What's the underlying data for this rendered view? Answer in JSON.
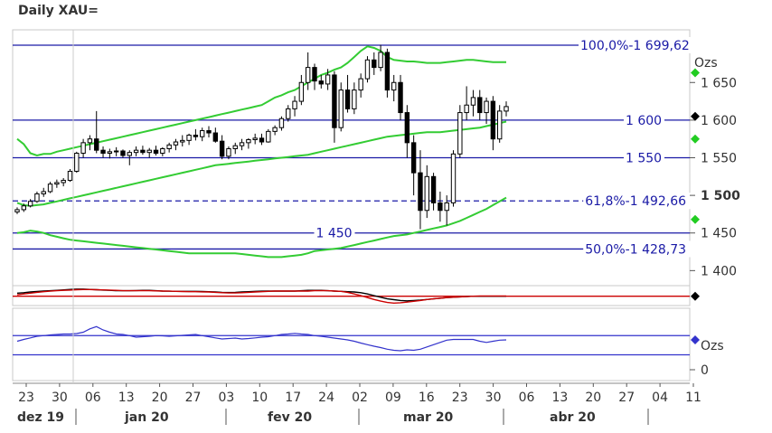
{
  "title": "Daily XAU=",
  "chart_data": {
    "type": "candlestick",
    "title": "Daily XAU=",
    "y_unit_label": "Ozs",
    "ylim": [
      1380,
      1720
    ],
    "y_ticks": [
      {
        "value": 1650,
        "label": "1 650",
        "bold": false
      },
      {
        "value": 1600,
        "label": "1 600",
        "bold": false
      },
      {
        "value": 1550,
        "label": "1 550",
        "bold": false
      },
      {
        "value": 1500,
        "label": "1 500",
        "bold": true
      },
      {
        "value": 1450,
        "label": "1 450",
        "bold": false
      },
      {
        "value": 1400,
        "label": "1 400",
        "bold": false
      }
    ],
    "x_ticks": [
      "23",
      "30",
      "06",
      "13",
      "20",
      "27",
      "03",
      "10",
      "17",
      "24",
      "02",
      "09",
      "16",
      "23",
      "30",
      "06",
      "13",
      "20",
      "27",
      "04",
      "11"
    ],
    "month_labels": [
      "dez 19",
      "jan 20",
      "fev 20",
      "mar 20",
      "abr 20"
    ],
    "horizontal_levels": [
      {
        "value": 1699.62,
        "label": "100,0%-1 699,62",
        "style": "solid"
      },
      {
        "value": 1600,
        "label": "1 600",
        "style": "solid"
      },
      {
        "value": 1550,
        "label": "1 550",
        "style": "solid"
      },
      {
        "value": 1492.66,
        "label": "61,8%-1 492,66",
        "style": "dashed"
      },
      {
        "value": 1450,
        "label": "1 450",
        "style": "solid"
      },
      {
        "value": 1428.73,
        "label": "50,0%-1 428,73",
        "style": "solid"
      }
    ],
    "candles": [
      [
        1478,
        1484,
        1475,
        1481
      ],
      [
        1481,
        1489,
        1478,
        1486
      ],
      [
        1486,
        1495,
        1484,
        1492
      ],
      [
        1492,
        1505,
        1490,
        1502
      ],
      [
        1502,
        1510,
        1498,
        1505
      ],
      [
        1505,
        1518,
        1503,
        1515
      ],
      [
        1515,
        1521,
        1510,
        1517
      ],
      [
        1517,
        1523,
        1512,
        1520
      ],
      [
        1520,
        1535,
        1518,
        1532
      ],
      [
        1532,
        1558,
        1530,
        1556
      ],
      [
        1556,
        1575,
        1550,
        1570
      ],
      [
        1570,
        1580,
        1560,
        1575
      ],
      [
        1575,
        1612,
        1556,
        1560
      ],
      [
        1560,
        1565,
        1550,
        1556
      ],
      [
        1556,
        1562,
        1549,
        1558
      ],
      [
        1558,
        1564,
        1552,
        1559
      ],
      [
        1559,
        1561,
        1550,
        1553
      ],
      [
        1553,
        1560,
        1540,
        1557
      ],
      [
        1557,
        1565,
        1552,
        1560
      ],
      [
        1560,
        1566,
        1554,
        1557
      ],
      [
        1557,
        1563,
        1550,
        1560
      ],
      [
        1560,
        1566,
        1553,
        1556
      ],
      [
        1556,
        1564,
        1552,
        1562
      ],
      [
        1562,
        1570,
        1557,
        1567
      ],
      [
        1567,
        1575,
        1560,
        1571
      ],
      [
        1571,
        1580,
        1565,
        1573
      ],
      [
        1573,
        1582,
        1567,
        1580
      ],
      [
        1580,
        1588,
        1573,
        1578
      ],
      [
        1578,
        1590,
        1572,
        1586
      ],
      [
        1586,
        1592,
        1577,
        1583
      ],
      [
        1583,
        1590,
        1570,
        1572
      ],
      [
        1572,
        1580,
        1548,
        1552
      ],
      [
        1552,
        1565,
        1548,
        1562
      ],
      [
        1562,
        1570,
        1555,
        1566
      ],
      [
        1566,
        1575,
        1560,
        1570
      ],
      [
        1570,
        1576,
        1562,
        1574
      ],
      [
        1574,
        1582,
        1568,
        1576
      ],
      [
        1576,
        1582,
        1567,
        1571
      ],
      [
        1571,
        1588,
        1570,
        1585
      ],
      [
        1585,
        1593,
        1580,
        1590
      ],
      [
        1590,
        1605,
        1586,
        1602
      ],
      [
        1602,
        1620,
        1598,
        1615
      ],
      [
        1615,
        1632,
        1605,
        1625
      ],
      [
        1625,
        1660,
        1620,
        1650
      ],
      [
        1650,
        1690,
        1640,
        1670
      ],
      [
        1670,
        1675,
        1640,
        1652
      ],
      [
        1652,
        1660,
        1642,
        1648
      ],
      [
        1648,
        1668,
        1640,
        1660
      ],
      [
        1660,
        1665,
        1570,
        1590
      ],
      [
        1590,
        1650,
        1585,
        1640
      ],
      [
        1640,
        1660,
        1610,
        1615
      ],
      [
        1615,
        1650,
        1608,
        1640
      ],
      [
        1640,
        1662,
        1630,
        1655
      ],
      [
        1655,
        1685,
        1650,
        1680
      ],
      [
        1680,
        1690,
        1660,
        1670
      ],
      [
        1670,
        1700,
        1665,
        1690
      ],
      [
        1690,
        1695,
        1630,
        1640
      ],
      [
        1640,
        1660,
        1625,
        1650
      ],
      [
        1650,
        1660,
        1600,
        1610
      ],
      [
        1610,
        1620,
        1550,
        1570
      ],
      [
        1570,
        1580,
        1500,
        1530
      ],
      [
        1530,
        1560,
        1455,
        1480
      ],
      [
        1480,
        1540,
        1470,
        1525
      ],
      [
        1525,
        1530,
        1480,
        1490
      ],
      [
        1490,
        1505,
        1465,
        1480
      ],
      [
        1480,
        1500,
        1460,
        1490
      ],
      [
        1490,
        1560,
        1485,
        1555
      ],
      [
        1555,
        1620,
        1550,
        1610
      ],
      [
        1610,
        1645,
        1600,
        1620
      ],
      [
        1620,
        1640,
        1605,
        1630
      ],
      [
        1630,
        1640,
        1600,
        1610
      ],
      [
        1610,
        1630,
        1595,
        1625
      ],
      [
        1625,
        1632,
        1560,
        1575
      ],
      [
        1575,
        1620,
        1570,
        1612
      ],
      [
        1612,
        1625,
        1605,
        1618
      ]
    ],
    "upper_band": [
      1575,
      1568,
      1556,
      1553,
      1555,
      1555,
      1558,
      1560,
      1562,
      1564,
      1566,
      1568,
      1570,
      1572,
      1574,
      1576,
      1578,
      1580,
      1582,
      1584,
      1586,
      1588,
      1590,
      1592,
      1594,
      1596,
      1598,
      1600,
      1602,
      1604,
      1606,
      1608,
      1610,
      1612,
      1614,
      1616,
      1618,
      1620,
      1625,
      1630,
      1633,
      1637,
      1640,
      1645,
      1650,
      1655,
      1660,
      1663,
      1667,
      1670,
      1676,
      1684,
      1692,
      1698,
      1696,
      1692,
      1684,
      1680,
      1679,
      1678,
      1678,
      1677,
      1676,
      1676,
      1676,
      1677,
      1678,
      1679,
      1680,
      1680,
      1679,
      1678,
      1677,
      1677,
      1677
    ],
    "middle_band": [
      1490,
      1487,
      1486,
      1487,
      1488,
      1490,
      1492,
      1494,
      1496,
      1498,
      1500,
      1502,
      1504,
      1506,
      1508,
      1510,
      1512,
      1514,
      1516,
      1518,
      1520,
      1522,
      1524,
      1526,
      1528,
      1530,
      1532,
      1534,
      1536,
      1538,
      1540,
      1541,
      1542,
      1543,
      1544,
      1545,
      1546,
      1547,
      1548,
      1549,
      1550,
      1551,
      1552,
      1553,
      1554,
      1556,
      1558,
      1560,
      1562,
      1564,
      1566,
      1568,
      1570,
      1572,
      1574,
      1576,
      1578,
      1579,
      1580,
      1581,
      1582,
      1583,
      1584,
      1584,
      1584,
      1585,
      1586,
      1587,
      1588,
      1589,
      1590,
      1592,
      1594,
      1596,
      1598
    ],
    "lower_band": [
      1450,
      1451,
      1453,
      1452,
      1450,
      1447,
      1445,
      1443,
      1441,
      1440,
      1439,
      1438,
      1437,
      1436,
      1435,
      1434,
      1433,
      1432,
      1431,
      1430,
      1429,
      1428,
      1427,
      1426,
      1425,
      1424,
      1423,
      1423,
      1423,
      1423,
      1423,
      1423,
      1423,
      1423,
      1422,
      1421,
      1420,
      1419,
      1418,
      1418,
      1418,
      1419,
      1420,
      1421,
      1423,
      1426,
      1427,
      1428,
      1429,
      1430,
      1432,
      1434,
      1436,
      1438,
      1440,
      1442,
      1444,
      1446,
      1447,
      1448,
      1450,
      1452,
      1454,
      1456,
      1458,
      1460,
      1463,
      1466,
      1470,
      1474,
      1478,
      1482,
      1487,
      1492,
      1497
    ],
    "indicator_1": {
      "line_black": [
        0.55,
        0.58,
        0.62,
        0.65,
        0.68,
        0.7,
        0.72,
        0.75,
        0.78,
        0.8,
        0.8,
        0.78,
        0.76,
        0.74,
        0.72,
        0.7,
        0.7,
        0.7,
        0.71,
        0.72,
        0.72,
        0.7,
        0.68,
        0.67,
        0.66,
        0.66,
        0.66,
        0.66,
        0.65,
        0.64,
        0.62,
        0.6,
        0.59,
        0.6,
        0.62,
        0.64,
        0.66,
        0.67,
        0.68,
        0.68,
        0.68,
        0.68,
        0.68,
        0.7,
        0.72,
        0.72,
        0.72,
        0.7,
        0.68,
        0.66,
        0.64,
        0.62,
        0.58,
        0.5,
        0.4,
        0.3,
        0.2,
        0.15,
        0.1,
        0.08,
        0.1,
        0.12,
        0.16,
        0.2,
        0.24,
        0.28,
        0.3,
        0.32,
        0.34,
        0.36,
        0.36,
        0.36,
        0.36,
        0.36,
        0.36
      ],
      "line_red": [
        0.45,
        0.5,
        0.55,
        0.6,
        0.64,
        0.67,
        0.7,
        0.72,
        0.74,
        0.76,
        0.77,
        0.77,
        0.76,
        0.75,
        0.74,
        0.72,
        0.7,
        0.7,
        0.7,
        0.7,
        0.7,
        0.69,
        0.68,
        0.67,
        0.66,
        0.65,
        0.64,
        0.64,
        0.63,
        0.62,
        0.6,
        0.58,
        0.56,
        0.56,
        0.58,
        0.6,
        0.62,
        0.64,
        0.66,
        0.68,
        0.68,
        0.68,
        0.68,
        0.68,
        0.68,
        0.7,
        0.7,
        0.7,
        0.68,
        0.66,
        0.6,
        0.5,
        0.4,
        0.28,
        0.16,
        0.06,
        -0.02,
        -0.06,
        -0.04,
        0.0,
        0.05,
        0.1,
        0.16,
        0.2,
        0.24,
        0.28,
        0.3,
        0.32,
        0.34,
        0.36,
        0.38,
        0.38,
        0.38,
        0.38,
        0.38
      ]
    },
    "indicator_2": {
      "y_unit_label": "Ozs",
      "y_ticks": [
        {
          "value": 0,
          "label": "0"
        }
      ],
      "line": [
        0.3,
        0.38,
        0.45,
        0.52,
        0.55,
        0.58,
        0.6,
        0.62,
        0.62,
        0.64,
        0.7,
        0.85,
        0.95,
        0.8,
        0.7,
        0.62,
        0.6,
        0.55,
        0.48,
        0.5,
        0.52,
        0.55,
        0.54,
        0.52,
        0.54,
        0.56,
        0.58,
        0.6,
        0.55,
        0.5,
        0.45,
        0.4,
        0.42,
        0.44,
        0.4,
        0.42,
        0.45,
        0.48,
        0.5,
        0.55,
        0.6,
        0.62,
        0.65,
        0.62,
        0.6,
        0.55,
        0.52,
        0.48,
        0.44,
        0.4,
        0.36,
        0.3,
        0.22,
        0.15,
        0.08,
        0.02,
        -0.05,
        -0.1,
        -0.12,
        -0.08,
        -0.1,
        -0.05,
        0.05,
        0.15,
        0.25,
        0.35,
        0.38,
        0.38,
        0.38,
        0.38,
        0.3,
        0.25,
        0.3,
        0.35,
        0.36
      ]
    },
    "colors": {
      "candle_up": "#ffffff",
      "candle_down": "#000000",
      "level_line": "#1a1aa6",
      "bands": "#33cc33",
      "indicator_black": "#000000",
      "indicator_red": "#cc0000",
      "indicator_blue": "#3333cc",
      "marker_green": "#22cc22",
      "marker_black": "#000000"
    }
  }
}
